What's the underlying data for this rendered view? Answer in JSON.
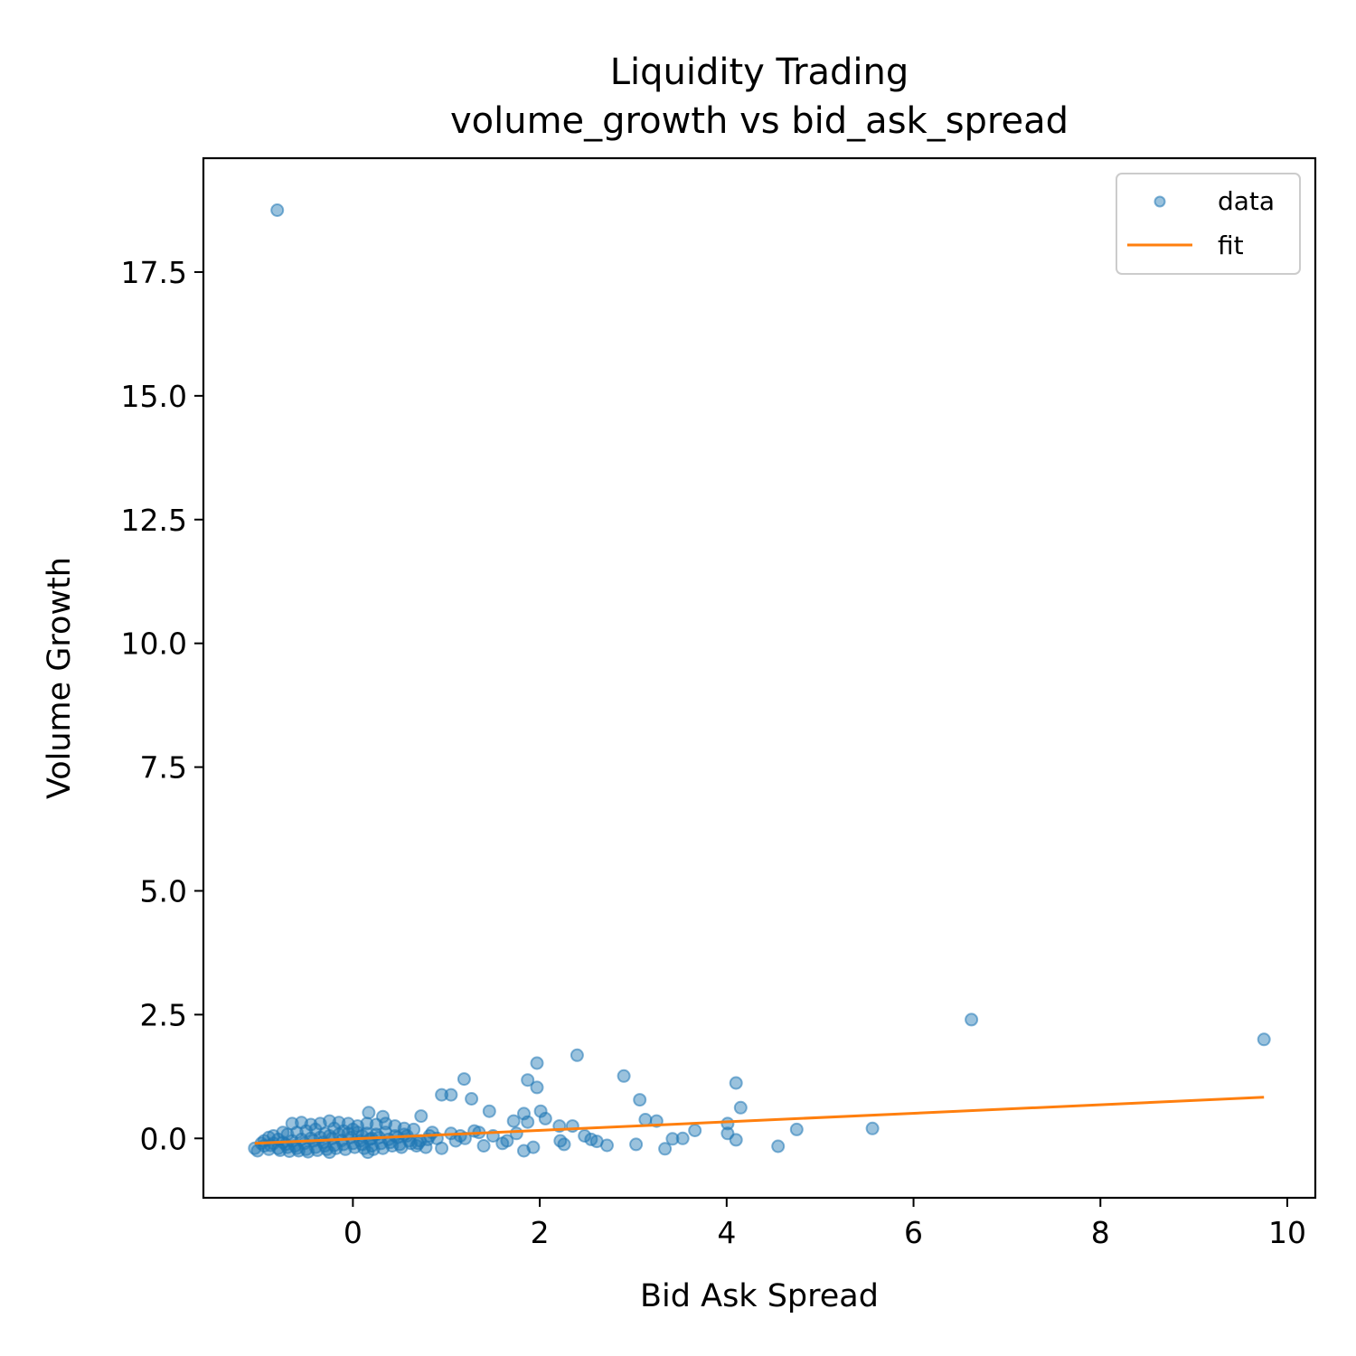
{
  "chart_data": {
    "type": "scatter",
    "title": "Liquidity Trading",
    "subtitle": "volume_growth vs bid_ask_spread",
    "xlabel": "Bid Ask Spread",
    "ylabel": "Volume Growth",
    "xlim": [
      -1.6,
      10.3
    ],
    "ylim": [
      -1.2,
      19.8
    ],
    "xticks": [
      0,
      2,
      4,
      6,
      8,
      10
    ],
    "yticks": [
      0.0,
      2.5,
      5.0,
      7.5,
      10.0,
      12.5,
      15.0,
      17.5
    ],
    "xtick_labels": [
      "0",
      "2",
      "4",
      "6",
      "8",
      "10"
    ],
    "ytick_labels": [
      "0.0",
      "2.5",
      "5.0",
      "7.5",
      "10.0",
      "12.5",
      "15.0",
      "17.5"
    ],
    "grid": false,
    "legend": {
      "placement": "top-right",
      "entries": [
        {
          "label": "data",
          "kind": "marker"
        },
        {
          "label": "fit",
          "kind": "line"
        }
      ]
    },
    "colors": {
      "data": "#1f77b4",
      "fit": "#ff7f0e"
    },
    "series": [
      {
        "name": "data",
        "kind": "scatter",
        "points": [
          [
            -0.81,
            18.75
          ],
          [
            6.62,
            2.4
          ],
          [
            9.75,
            2.0
          ],
          [
            2.4,
            1.68
          ],
          [
            1.97,
            1.52
          ],
          [
            1.19,
            1.2
          ],
          [
            1.87,
            1.18
          ],
          [
            2.9,
            1.26
          ],
          [
            4.1,
            1.12
          ],
          [
            1.97,
            1.03
          ],
          [
            1.05,
            0.88
          ],
          [
            0.95,
            0.88
          ],
          [
            1.27,
            0.8
          ],
          [
            3.07,
            0.78
          ],
          [
            4.15,
            0.62
          ],
          [
            1.46,
            0.55
          ],
          [
            2.01,
            0.55
          ],
          [
            0.17,
            0.52
          ],
          [
            0.73,
            0.45
          ],
          [
            0.32,
            0.44
          ],
          [
            1.83,
            0.5
          ],
          [
            1.72,
            0.35
          ],
          [
            1.87,
            0.33
          ],
          [
            3.13,
            0.38
          ],
          [
            3.25,
            0.35
          ],
          [
            2.06,
            0.4
          ],
          [
            2.21,
            0.25
          ],
          [
            2.35,
            0.25
          ],
          [
            4.01,
            0.3
          ],
          [
            4.75,
            0.18
          ],
          [
            5.56,
            0.2
          ],
          [
            3.66,
            0.16
          ],
          [
            4.01,
            0.1
          ],
          [
            2.48,
            0.05
          ],
          [
            2.55,
            -0.02
          ],
          [
            2.61,
            -0.06
          ],
          [
            2.72,
            -0.14
          ],
          [
            3.03,
            -0.12
          ],
          [
            3.34,
            -0.21
          ],
          [
            3.42,
            -0.01
          ],
          [
            3.53,
            0.0
          ],
          [
            4.1,
            -0.03
          ],
          [
            4.55,
            -0.16
          ],
          [
            1.93,
            -0.18
          ],
          [
            1.4,
            -0.15
          ],
          [
            1.83,
            -0.25
          ],
          [
            0.95,
            -0.2
          ],
          [
            2.22,
            -0.05
          ],
          [
            2.26,
            -0.12
          ],
          [
            1.6,
            -0.1
          ],
          [
            1.3,
            0.15
          ],
          [
            1.15,
            0.05
          ],
          [
            1.05,
            0.1
          ],
          [
            0.85,
            0.12
          ],
          [
            0.65,
            0.18
          ],
          [
            0.55,
            0.2
          ],
          [
            0.45,
            0.25
          ],
          [
            0.35,
            0.3
          ],
          [
            0.25,
            0.28
          ],
          [
            0.15,
            0.3
          ],
          [
            0.05,
            0.25
          ],
          [
            -0.05,
            0.3
          ],
          [
            -0.15,
            0.32
          ],
          [
            -0.25,
            0.35
          ],
          [
            -0.35,
            0.3
          ],
          [
            -0.45,
            0.28
          ],
          [
            -0.55,
            0.32
          ],
          [
            -0.65,
            0.3
          ],
          [
            -0.75,
            0.12
          ],
          [
            -0.85,
            0.05
          ],
          [
            -0.95,
            -0.05
          ],
          [
            -1.05,
            -0.2
          ],
          [
            -1.02,
            -0.25
          ],
          [
            -0.9,
            -0.22
          ],
          [
            -0.8,
            -0.2
          ],
          [
            -0.7,
            -0.18
          ],
          [
            -0.6,
            -0.2
          ],
          [
            -0.5,
            -0.22
          ],
          [
            -0.4,
            -0.18
          ],
          [
            -0.3,
            -0.15
          ],
          [
            -0.2,
            -0.14
          ],
          [
            -0.1,
            -0.12
          ],
          [
            0.0,
            -0.1
          ],
          [
            0.1,
            -0.12
          ],
          [
            0.2,
            -0.15
          ],
          [
            0.3,
            -0.1
          ],
          [
            0.4,
            -0.08
          ],
          [
            0.5,
            -0.12
          ],
          [
            0.6,
            -0.05
          ],
          [
            0.7,
            -0.1
          ],
          [
            0.8,
            -0.02
          ],
          [
            0.9,
            0.0
          ],
          [
            -0.95,
            -0.15
          ],
          [
            -0.85,
            -0.1
          ],
          [
            -0.75,
            -0.08
          ],
          [
            -0.65,
            -0.05
          ],
          [
            -0.55,
            -0.02
          ],
          [
            -0.45,
            0.0
          ],
          [
            -0.35,
            0.02
          ],
          [
            -0.25,
            0.05
          ],
          [
            -0.15,
            0.08
          ],
          [
            -0.05,
            0.1
          ],
          [
            0.05,
            0.12
          ],
          [
            0.15,
            0.1
          ],
          [
            0.25,
            0.08
          ],
          [
            0.35,
            0.12
          ],
          [
            0.45,
            0.05
          ],
          [
            0.55,
            0.08
          ],
          [
            -0.7,
            0.08
          ],
          [
            -0.6,
            0.12
          ],
          [
            -0.5,
            0.15
          ],
          [
            -0.4,
            0.18
          ],
          [
            -0.3,
            0.1
          ],
          [
            -0.2,
            0.2
          ],
          [
            -0.1,
            0.15
          ],
          [
            0.0,
            0.18
          ],
          [
            0.1,
            0.05
          ],
          [
            0.2,
            0.0
          ],
          [
            -0.9,
            0.02
          ],
          [
            -0.8,
            -0.02
          ],
          [
            -0.72,
            -0.12
          ],
          [
            -0.62,
            -0.15
          ],
          [
            -0.52,
            -0.1
          ],
          [
            -0.42,
            -0.05
          ],
          [
            -0.32,
            -0.08
          ],
          [
            -0.22,
            0.0
          ],
          [
            -0.12,
            -0.04
          ],
          [
            -0.02,
            0.02
          ],
          [
            0.08,
            -0.05
          ],
          [
            0.18,
            -0.02
          ],
          [
            0.28,
            0.02
          ],
          [
            0.38,
            -0.02
          ],
          [
            0.48,
            0.02
          ],
          [
            0.58,
            0.05
          ],
          [
            0.68,
            -0.15
          ],
          [
            0.78,
            -0.18
          ],
          [
            -0.98,
            -0.1
          ],
          [
            -0.88,
            -0.14
          ],
          [
            -0.78,
            -0.24
          ],
          [
            -0.68,
            -0.26
          ],
          [
            -0.58,
            -0.25
          ],
          [
            -0.48,
            -0.27
          ],
          [
            -0.38,
            -0.24
          ],
          [
            -0.28,
            -0.22
          ],
          [
            -0.18,
            -0.2
          ],
          [
            -0.08,
            -0.22
          ],
          [
            0.02,
            -0.18
          ],
          [
            0.12,
            -0.2
          ],
          [
            0.22,
            -0.22
          ],
          [
            0.32,
            -0.2
          ],
          [
            0.42,
            -0.15
          ],
          [
            0.52,
            -0.18
          ],
          [
            0.62,
            -0.1
          ],
          [
            0.72,
            -0.05
          ],
          [
            0.82,
            0.05
          ],
          [
            1.1,
            -0.05
          ],
          [
            1.2,
            0.0
          ],
          [
            1.35,
            0.12
          ],
          [
            1.5,
            0.05
          ],
          [
            1.65,
            -0.05
          ],
          [
            1.75,
            0.1
          ],
          [
            0.16,
            -0.28
          ],
          [
            -0.25,
            -0.28
          ]
        ]
      },
      {
        "name": "fit",
        "kind": "line",
        "points": [
          [
            -1.05,
            -0.1
          ],
          [
            9.75,
            0.83
          ]
        ]
      }
    ]
  }
}
